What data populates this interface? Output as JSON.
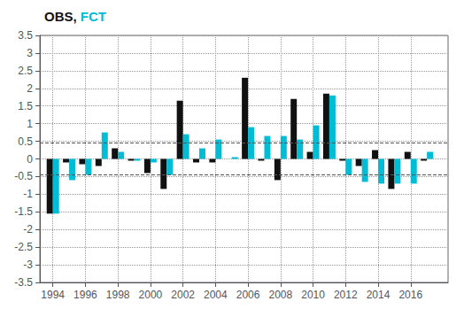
{
  "chart_data": {
    "type": "bar",
    "title": "OBS, FCT",
    "x": [
      1994,
      1995,
      1996,
      1997,
      1998,
      1999,
      2000,
      2001,
      2002,
      2003,
      2004,
      2005,
      2006,
      2007,
      2008,
      2009,
      2010,
      2011,
      2012,
      2013,
      2014,
      2015,
      2016,
      2017
    ],
    "series": [
      {
        "name": "OBS",
        "color": "#111111",
        "values": [
          -1.55,
          -0.1,
          -0.15,
          -0.2,
          0.3,
          -0.05,
          -0.4,
          -0.85,
          1.65,
          -0.1,
          -0.1,
          0.0,
          2.3,
          -0.05,
          -0.6,
          1.7,
          0.2,
          1.85,
          -0.05,
          -0.2,
          0.25,
          -0.85,
          0.2,
          -0.05
        ]
      },
      {
        "name": "FCT",
        "color": "#00bcd4",
        "values": [
          -1.55,
          -0.6,
          -0.45,
          0.75,
          0.2,
          -0.05,
          -0.1,
          -0.45,
          0.7,
          0.3,
          0.55,
          0.05,
          0.9,
          0.65,
          0.65,
          0.55,
          0.95,
          1.8,
          -0.45,
          -0.65,
          -0.7,
          -0.7,
          -0.7,
          0.2
        ]
      }
    ],
    "hlines": [
      0.45,
      -0.45
    ],
    "xlim": [
      1993.2,
      2018.3
    ],
    "xticks": [
      1994,
      1996,
      1998,
      2000,
      2002,
      2004,
      2006,
      2008,
      2010,
      2012,
      2014,
      2016
    ],
    "ylim": [
      -3.5,
      3.5
    ],
    "yticks": [
      -3.5,
      -3,
      -2.5,
      -2,
      -1.5,
      -1,
      -0.5,
      0,
      0.5,
      1,
      1.5,
      2,
      2.5,
      3,
      3.5
    ],
    "grid": true
  }
}
